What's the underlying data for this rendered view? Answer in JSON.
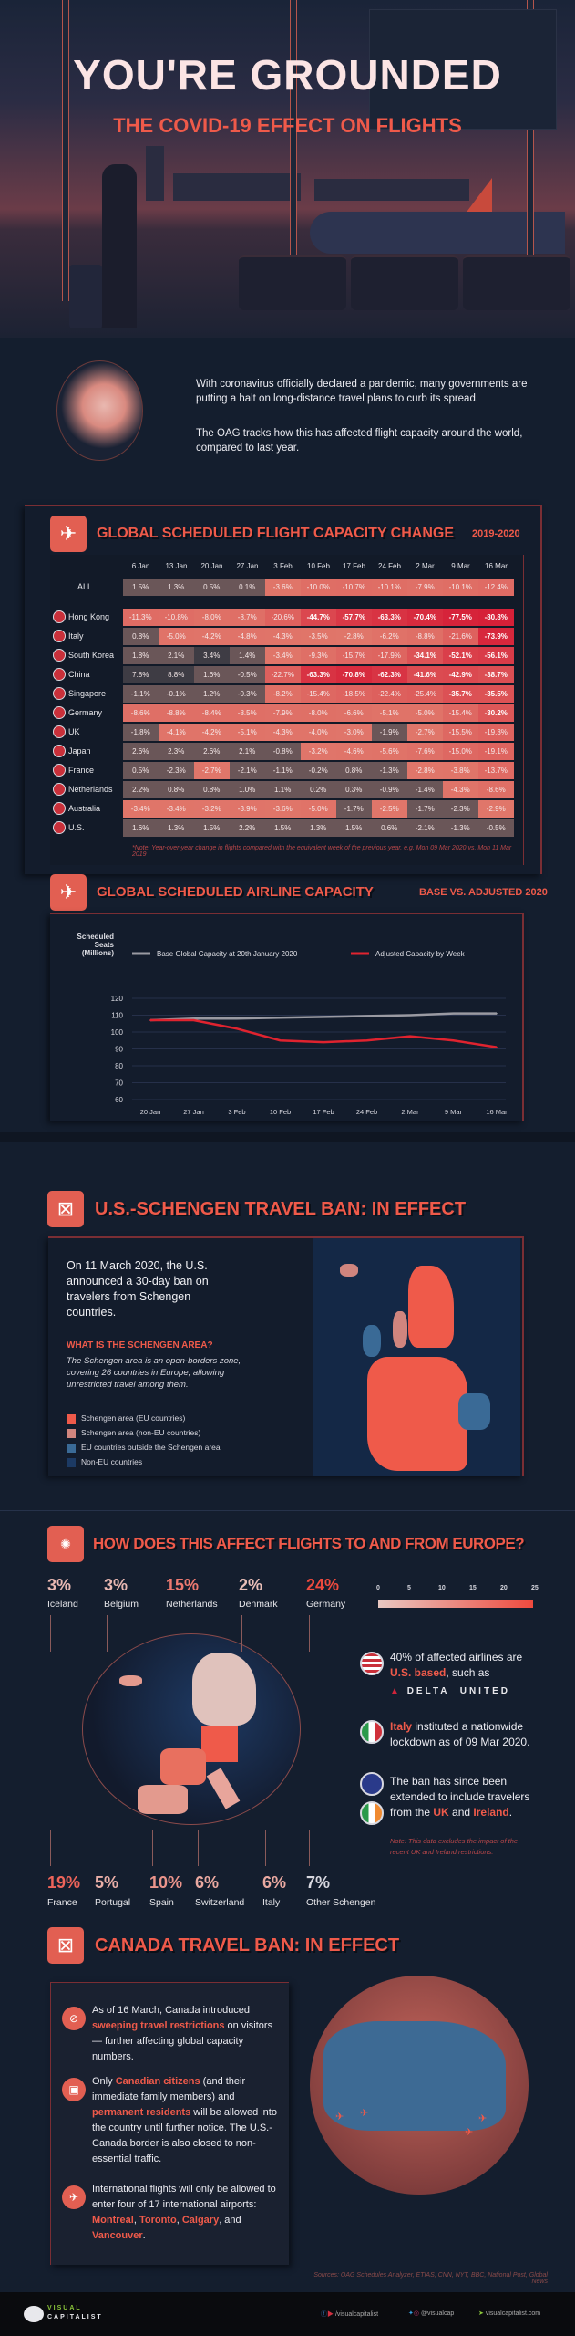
{
  "hero": {
    "title": "YOU'RE GROUNDED",
    "subtitle": "THE COVID-19 EFFECT ON FLIGHTS"
  },
  "intro": {
    "p1": "With coronavirus officially declared a pandemic, many governments are putting a halt on long-distance travel plans to curb its spread.",
    "p2": "The OAG tracks how this has affected flight capacity around the world, compared to last year."
  },
  "capacity_change": {
    "title": "GLOBAL SCHEDULED FLIGHT CAPACITY CHANGE",
    "subtitle": "2019-2020",
    "weeks": [
      "6 Jan",
      "13 Jan",
      "20 Jan",
      "27 Jan",
      "3 Feb",
      "10 Feb",
      "17 Feb",
      "24 Feb",
      "2 Mar",
      "9 Mar",
      "16 Mar"
    ],
    "rows": [
      {
        "label": "ALL",
        "flag": "none",
        "values": [
          1.5,
          1.3,
          0.5,
          0.1,
          -3.6,
          -10.0,
          -10.7,
          -10.1,
          -7.9,
          -10.1,
          -12.4
        ]
      },
      {
        "label": "Hong Kong",
        "flag": "hong-kong",
        "values": [
          -11.3,
          -10.8,
          -8.0,
          -8.7,
          -20.6,
          -44.7,
          -57.7,
          -63.3,
          -70.4,
          -77.5,
          -80.8
        ]
      },
      {
        "label": "Italy",
        "flag": "italy",
        "values": [
          0.8,
          -5.0,
          -4.2,
          -4.8,
          -4.3,
          -3.5,
          -2.8,
          -6.2,
          -8.8,
          -21.6,
          -73.9
        ]
      },
      {
        "label": "South Korea",
        "flag": "south-korea",
        "values": [
          1.8,
          2.1,
          3.4,
          1.4,
          -3.4,
          -9.3,
          -15.7,
          -17.9,
          -34.1,
          -52.1,
          -56.1
        ]
      },
      {
        "label": "China",
        "flag": "china",
        "values": [
          7.8,
          8.8,
          1.6,
          -0.5,
          -22.7,
          -63.3,
          -70.8,
          -62.3,
          -41.6,
          -42.9,
          -38.7
        ]
      },
      {
        "label": "Singapore",
        "flag": "singapore",
        "values": [
          -1.1,
          -0.1,
          1.2,
          -0.3,
          -8.2,
          -15.4,
          -18.5,
          -22.4,
          -25.4,
          -35.7,
          -35.5
        ]
      },
      {
        "label": "Germany",
        "flag": "germany",
        "values": [
          -8.6,
          -8.8,
          -8.4,
          -8.5,
          -7.9,
          -8.0,
          -6.6,
          -5.1,
          -5.0,
          -15.4,
          -30.2
        ]
      },
      {
        "label": "UK",
        "flag": "uk",
        "values": [
          -1.8,
          -4.1,
          -4.2,
          -5.1,
          -4.3,
          -4.0,
          -3.0,
          -1.9,
          -2.7,
          -15.5,
          -19.3
        ]
      },
      {
        "label": "Japan",
        "flag": "japan",
        "values": [
          2.6,
          2.3,
          2.6,
          2.1,
          -0.8,
          -3.2,
          -4.6,
          -5.6,
          -7.6,
          -15.0,
          -19.1
        ]
      },
      {
        "label": "France",
        "flag": "france",
        "values": [
          0.5,
          -2.3,
          -2.7,
          -2.1,
          -1.1,
          -0.2,
          0.8,
          -1.3,
          -2.8,
          -3.8,
          -13.7
        ]
      },
      {
        "label": "Netherlands",
        "flag": "netherlands",
        "values": [
          2.2,
          0.8,
          0.8,
          1.0,
          1.1,
          0.2,
          0.3,
          -0.9,
          -1.4,
          -4.3,
          -8.6
        ]
      },
      {
        "label": "Australia",
        "flag": "australia",
        "values": [
          -3.4,
          -3.4,
          -3.2,
          -3.9,
          -3.6,
          -5.0,
          -1.7,
          -2.5,
          -1.7,
          -2.3,
          -2.9
        ]
      },
      {
        "label": "U.S.",
        "flag": "us",
        "values": [
          1.6,
          1.3,
          1.5,
          2.2,
          1.5,
          1.3,
          1.5,
          0.6,
          -2.1,
          -1.3,
          -0.5
        ]
      }
    ],
    "note": "*Note: Year-over-year change in flights compared with the equivalent week of the previous year, e.g. Mon 09 Mar 2020 vs. Mon 11 Mar 2019"
  },
  "chart_data": {
    "type": "line",
    "title": "GLOBAL SCHEDULED AIRLINE CAPACITY",
    "subtitle": "BASE VS. ADJUSTED 2020",
    "ylabel": "Scheduled Seats (Millions)",
    "ylabel_line1": "Scheduled Seats",
    "ylabel_line2": "(Millions)",
    "xlabel": "",
    "x": [
      "20 Jan",
      "27 Jan",
      "3 Feb",
      "10 Feb",
      "17 Feb",
      "24 Feb",
      "2 Mar",
      "9 Mar",
      "16 Mar"
    ],
    "yticks": [
      120,
      110,
      100,
      90,
      80,
      70,
      60
    ],
    "ylim": [
      60,
      120
    ],
    "grid": true,
    "legend_position": "top",
    "series": [
      {
        "name": "Base Global Capacity at 20th January 2020",
        "color": "#9a9aa2",
        "values": [
          107,
          108,
          108,
          108.5,
          109,
          109.5,
          110,
          111,
          111
        ]
      },
      {
        "name": "Adjusted Capacity by Week",
        "color": "#e0232f",
        "values": [
          107,
          107,
          102,
          95,
          94,
          95,
          97.5,
          95,
          91
        ]
      }
    ]
  },
  "schengen": {
    "title": "U.S.-SCHENGEN TRAVEL BAN: IN EFFECT",
    "lead": "On 11 March 2020, the U.S. announced a 30-day ban on travelers from Schengen countries.",
    "question": "WHAT IS THE SCHENGEN AREA?",
    "answer": "The Schengen area is an open-borders zone, covering 26 countries in Europe, allowing unrestricted travel among them.",
    "legend": [
      {
        "label": "Schengen area (EU countries)",
        "color": "#ef5a4a"
      },
      {
        "label": "Schengen area (non-EU countries)",
        "color": "#d0857e"
      },
      {
        "label": "EU countries outside the Schengen area",
        "color": "#3a6a96"
      },
      {
        "label": "Non-EU countries",
        "color": "#1c3a64"
      }
    ]
  },
  "europe": {
    "title": "HOW DOES THIS AFFECT FLIGHTS TO AND FROM EUROPE?",
    "top": [
      {
        "pct": "3%",
        "country": "Iceland"
      },
      {
        "pct": "3%",
        "country": "Belgium"
      },
      {
        "pct": "15%",
        "country": "Netherlands"
      },
      {
        "pct": "2%",
        "country": "Denmark"
      },
      {
        "pct": "24%",
        "country": "Germany"
      }
    ],
    "bottom": [
      {
        "pct": "19%",
        "country": "France"
      },
      {
        "pct": "5%",
        "country": "Portugal"
      },
      {
        "pct": "10%",
        "country": "Spain"
      },
      {
        "pct": "6%",
        "country": "Switzerland"
      },
      {
        "pct": "6%",
        "country": "Italy"
      },
      {
        "pct": "7%",
        "country": "Other Schengen"
      }
    ],
    "scale": [
      "0",
      "5",
      "10",
      "15",
      "20",
      "25"
    ],
    "us_note": {
      "a": "40% of affected airlines are ",
      "b": "U.S. based",
      ".c": "",
      "c": ", such as"
    },
    "airlines": [
      "DELTA",
      "UNITED"
    ],
    "italy_note": {
      "a": "Italy",
      "b": " instituted a nationwide lockdown as of 09 Mar 2020."
    },
    "uk_note": {
      "a": "The ban has since been extended to include travelers from the ",
      "b": "UK",
      "c": " and ",
      "d": "Ireland",
      "e": "."
    },
    "data_note": "Note: This data excludes the impact of the recent UK and Ireland restrictions."
  },
  "canada": {
    "title": "CANADA TRAVEL BAN: IN EFFECT",
    "item1": {
      "a": "As of 16 March, Canada introduced ",
      "b": "sweeping travel restrictions",
      "c": " on visitors— further affecting global capacity numbers."
    },
    "item2": {
      "a": "Only ",
      "b": "Canadian citizens",
      "c": " (and their immediate family members) and ",
      "d": "permanent residents",
      "e": " will be allowed into the country until further notice. The U.S.-Canada border is also closed to non-essential traffic."
    },
    "item3": {
      "a": "International flights will only be allowed to enter four of 17 international airports: ",
      "b": "Montreal",
      "c": ", ",
      "d": "Toronto",
      "e": ", ",
      "f": "Calgary",
      "g": ", and ",
      "h": "Vancouver",
      "i": "."
    }
  },
  "sources": "Sources: OAG Schedules Analyzer, ETIAS, CNN, NYT, BBC, National Post, Global News",
  "footer": {
    "brand_line1": "VISUAL",
    "brand_line2": "CAPITALIST",
    "fb_yt_handle": "/visualcapitalist",
    "tw_ig_handle": "@visualcap",
    "website": "visualcapitalist.com"
  }
}
